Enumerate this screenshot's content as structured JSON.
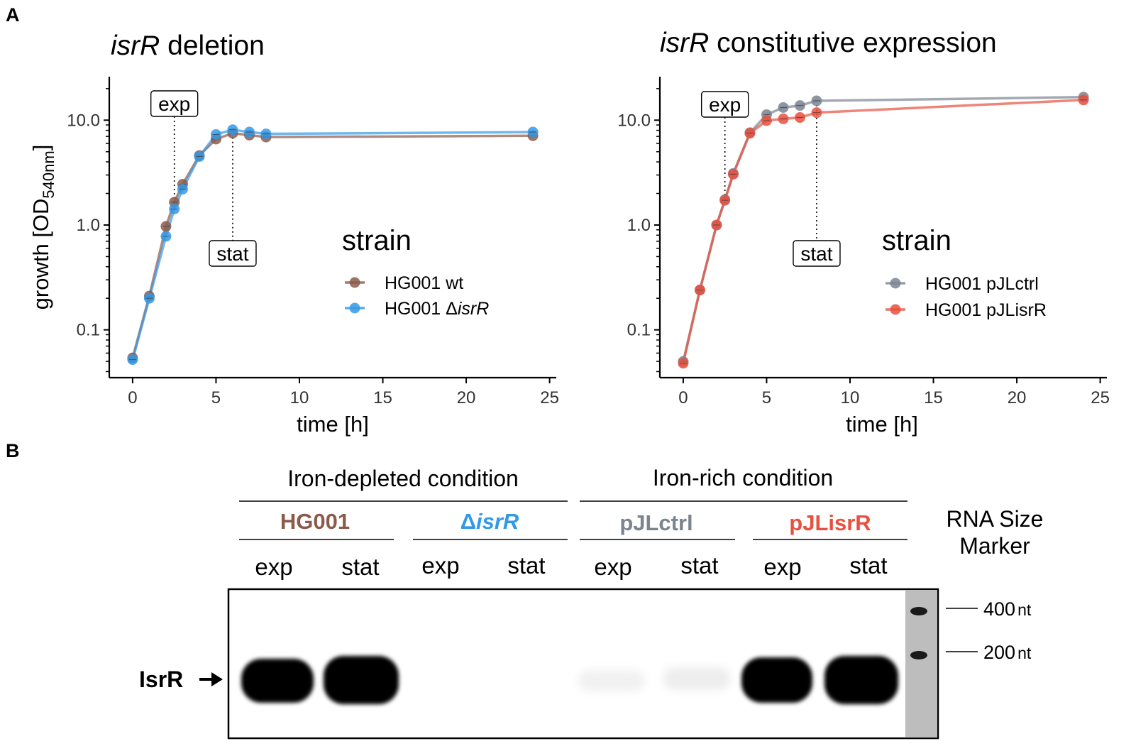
{
  "panel_labels": {
    "a": "A",
    "b": "B"
  },
  "chart_data": [
    {
      "type": "line",
      "title_italic": "isrR",
      "title_rest": " deletion",
      "xlabel": "time [h]",
      "ylabel_main": "growth [OD",
      "ylabel_sub": "540nm",
      "ylabel_end": "]",
      "yscale": "log",
      "xlim": [
        -1.4,
        25.4
      ],
      "ylim": [
        0.035,
        26
      ],
      "xticks": [
        0,
        5,
        10,
        15,
        20,
        25
      ],
      "yticks": [
        0.1,
        1.0,
        10.0
      ],
      "ytick_labels": [
        "0.1",
        "1.0",
        "10.0"
      ],
      "legend_title": "strain",
      "series": [
        {
          "name": "HG001 wt",
          "name_prefix": "HG001 wt",
          "name_italic": "",
          "color": "#8B5A4A",
          "x": [
            0,
            1,
            2,
            2.5,
            3,
            4,
            5,
            6,
            7,
            8,
            24
          ],
          "y": [
            0.054,
            0.21,
            0.97,
            1.65,
            2.45,
            4.6,
            6.6,
            7.5,
            7.2,
            6.9,
            7.1
          ]
        },
        {
          "name": "HG001 ΔisrR",
          "name_prefix": "HG001 Δ",
          "name_italic": "isrR",
          "color": "#3399E6",
          "x": [
            0,
            1,
            2,
            2.5,
            3,
            4,
            5,
            6,
            7,
            8,
            24
          ],
          "y": [
            0.052,
            0.2,
            0.78,
            1.42,
            2.2,
            4.5,
            7.3,
            8.1,
            7.7,
            7.4,
            7.7
          ]
        }
      ],
      "annotations": [
        {
          "label": "exp",
          "x": 2.5
        },
        {
          "label": "stat",
          "x": 6
        }
      ]
    },
    {
      "type": "line",
      "title_italic": "isrR",
      "title_rest": " constitutive expression",
      "xlabel": "time [h]",
      "yscale": "log",
      "xlim": [
        -1.4,
        25.4
      ],
      "ylim": [
        0.035,
        26
      ],
      "xticks": [
        0,
        5,
        10,
        15,
        20,
        25
      ],
      "yticks": [
        0.1,
        1.0,
        10.0
      ],
      "ytick_labels": [
        "0.1",
        "1.0",
        "10.0"
      ],
      "legend_title": "strain",
      "series": [
        {
          "name": "HG001 pJLctrl",
          "name_prefix": "HG001 pJLctrl",
          "name_italic": "",
          "color": "#7A8590",
          "x": [
            0,
            1,
            2,
            2.5,
            3,
            4,
            5,
            6,
            7,
            8,
            24
          ],
          "y": [
            0.05,
            0.24,
            1.0,
            1.75,
            3.1,
            7.6,
            11.3,
            13.2,
            13.8,
            15.3,
            16.6
          ]
        },
        {
          "name": "HG001 pJLisrR",
          "name_prefix": "HG001 pJLisrR",
          "name_italic": "",
          "color": "#E8503F",
          "x": [
            0,
            1,
            2,
            2.5,
            3,
            4,
            5,
            6,
            7,
            8,
            24
          ],
          "y": [
            0.048,
            0.24,
            1.0,
            1.72,
            3.05,
            7.5,
            9.9,
            10.3,
            10.6,
            11.8,
            15.6
          ]
        }
      ],
      "annotations": [
        {
          "label": "exp",
          "x": 2.5
        },
        {
          "label": "stat",
          "x": 8
        }
      ]
    }
  ],
  "northern": {
    "conditions": [
      "Iron-depleted condition",
      "Iron-rich condition"
    ],
    "strains": [
      {
        "prefix": "",
        "italic": "",
        "rest": "HG001",
        "color": "#8B5A4A"
      },
      {
        "prefix": "Δ",
        "italic": "isrR",
        "rest": "",
        "color": "#3399E6"
      },
      {
        "prefix": "",
        "italic": "",
        "rest": "pJLctrl",
        "color": "#7A8590"
      },
      {
        "prefix": "",
        "italic": "",
        "rest": "pJLisrR",
        "color": "#E8503F"
      }
    ],
    "lanes": [
      "exp",
      "stat",
      "exp",
      "stat",
      "exp",
      "stat",
      "exp",
      "stat"
    ],
    "marker_title_1": "RNA Size",
    "marker_title_2": "Marker",
    "marker_400": "400",
    "marker_200": "200",
    "marker_unit": "nt",
    "band_label": "IsrR"
  }
}
